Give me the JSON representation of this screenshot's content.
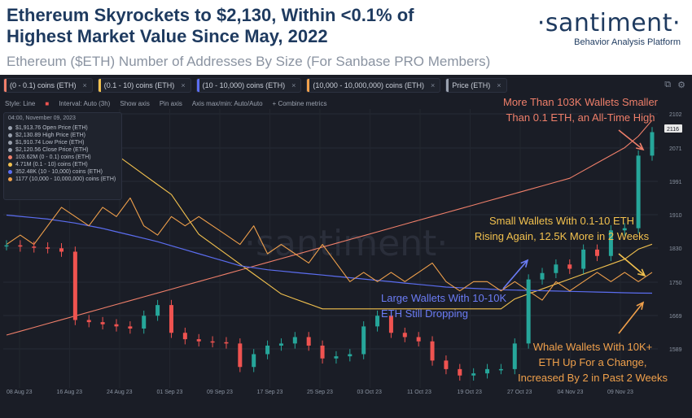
{
  "header": {
    "title_line1": "Ethereum Skyrockets to $2,130, Within <0.1% of",
    "title_line2": "Highest Market Value Since May, 2022",
    "subtitle": "Ethereum ($ETH) Number of Addresses By Size (For Sanbase PRO Members)",
    "brand_name": "·santiment·",
    "brand_tagline": "Behavior Analysis Platform"
  },
  "legend": [
    {
      "label": "(0 - 0.1) coins (ETH)",
      "color": "#ef7f6a"
    },
    {
      "label": "(0.1 - 10) coins (ETH)",
      "color": "#f2c14e"
    },
    {
      "label": "(10 - 10,000) coins (ETH)",
      "color": "#5b6df0"
    },
    {
      "label": "(10,000 - 10,000,000) coins (ETH)",
      "color": "#f0a04b"
    },
    {
      "label": "Price (ETH)",
      "color": "#9aa1ae"
    }
  ],
  "toolbar": {
    "style": "Style: Line",
    "interval": "Interval: Auto (3h)",
    "show_axis": "Show axis",
    "pin_axis": "Pin axis",
    "axis_minmax": "Axis max/min: Auto/Auto",
    "combine": "+ Combine metrics"
  },
  "infobox": {
    "date": "04:00, November 09, 2023",
    "rows": [
      {
        "text": "$1,913.76 Open Price (ETH)",
        "color": "#9aa1ae"
      },
      {
        "text": "$2,130.89 High Price (ETH)",
        "color": "#9aa1ae"
      },
      {
        "text": "$1,910.74 Low Price (ETH)",
        "color": "#9aa1ae"
      },
      {
        "text": "$2,120.56 Close Price (ETH)",
        "color": "#9aa1ae"
      },
      {
        "text": "103.62M (0 - 0.1) coins (ETH)",
        "color": "#ef7f6a"
      },
      {
        "text": "4.71M (0.1 - 10) coins (ETH)",
        "color": "#f2c14e"
      },
      {
        "text": "352.48K (10 - 10,000) coins (ETH)",
        "color": "#5b6df0"
      },
      {
        "text": "1177 (10,000 - 10,000,000) coins (ETH)",
        "color": "#f0a04b"
      }
    ]
  },
  "annotations": {
    "top_line1": "More Than 103K Wallets Smaller",
    "top_line2": "Than 0.1 ETH, an All-Time High",
    "small_line1": "Small Wallets With 0.1-10 ETH",
    "small_line2": "Rising Again, 12.5K More in 2 Weeks",
    "large_line1": "Large Wallets With 10-10K",
    "large_line2": "ETH Still Dropping",
    "whale_line1": "Whale Wallets With 10K+",
    "whale_line2": "ETH Up For a Change,",
    "whale_line3": "Increased By 2 in Past 2 Weeks"
  },
  "colors": {
    "background": "#1a1d26",
    "up_candle": "#26a69a",
    "down_candle": "#ef5350",
    "tiny_wallets": "#ef7f6a",
    "small_wallets": "#f2c14e",
    "large_wallets": "#5b6df0",
    "whale_wallets": "#f0a04b"
  },
  "chart_data": {
    "type": "line",
    "x_ticks": [
      "08 Aug 23",
      "16 Aug 23",
      "24 Aug 23",
      "01 Sep 23",
      "09 Sep 23",
      "17 Sep 23",
      "25 Sep 23",
      "03 Oct 23",
      "11 Oct 23",
      "19 Oct 23",
      "27 Oct 23",
      "04 Nov 23",
      "09 Nov 23"
    ],
    "y_ticks_price": [
      "2102",
      "2071",
      "1991",
      "1910",
      "1830",
      "1750",
      "1669",
      "1589"
    ],
    "price_label": "2116",
    "price_close_x": [
      "08 Aug",
      "10 Aug",
      "12 Aug",
      "14 Aug",
      "16 Aug",
      "18 Aug",
      "20 Aug",
      "22 Aug",
      "24 Aug",
      "26 Aug",
      "28 Aug",
      "30 Aug",
      "01 Sep",
      "03 Sep",
      "05 Sep",
      "07 Sep",
      "09 Sep",
      "11 Sep",
      "13 Sep",
      "15 Sep",
      "17 Sep",
      "19 Sep",
      "21 Sep",
      "23 Sep",
      "25 Sep",
      "27 Sep",
      "29 Sep",
      "01 Oct",
      "03 Oct",
      "05 Oct",
      "07 Oct",
      "09 Oct",
      "11 Oct",
      "13 Oct",
      "15 Oct",
      "17 Oct",
      "19 Oct",
      "21 Oct",
      "23 Oct",
      "25 Oct",
      "27 Oct",
      "29 Oct",
      "31 Oct",
      "02 Nov",
      "04 Nov",
      "06 Nov",
      "08 Nov",
      "09 Nov"
    ],
    "series": [
      {
        "name": "Price (ETH)",
        "values": [
          1855,
          1852,
          1850,
          1848,
          1840,
          1680,
          1675,
          1670,
          1665,
          1660,
          1690,
          1715,
          1650,
          1635,
          1630,
          1628,
          1625,
          1570,
          1600,
          1620,
          1625,
          1640,
          1620,
          1590,
          1595,
          1600,
          1665,
          1690,
          1650,
          1640,
          1630,
          1585,
          1565,
          1550,
          1555,
          1565,
          1565,
          1625,
          1775,
          1790,
          1810,
          1800,
          1845,
          1830,
          1890,
          1895,
          2065,
          2120
        ]
      },
      {
        "name": "(0 - 0.1) coins (ETH)",
        "values": [
          98.0,
          98.1,
          98.2,
          98.3,
          98.4,
          98.5,
          98.6,
          98.7,
          98.8,
          98.9,
          99.0,
          99.1,
          99.2,
          99.3,
          99.4,
          99.5,
          99.6,
          99.7,
          99.8,
          99.9,
          100.0,
          100.1,
          100.2,
          100.3,
          100.4,
          100.5,
          100.6,
          100.7,
          100.8,
          100.9,
          101.0,
          101.1,
          101.2,
          101.3,
          101.4,
          101.5,
          101.6,
          101.7,
          101.8,
          101.9,
          102.0,
          102.1,
          102.3,
          102.5,
          102.7,
          102.9,
          103.2,
          103.62
        ]
      },
      {
        "name": "(0.1 - 10) coins (ETH)",
        "values": [
          4.72,
          4.721,
          4.722,
          4.724,
          4.726,
          4.728,
          4.73,
          4.729,
          4.728,
          4.726,
          4.724,
          4.722,
          4.72,
          4.716,
          4.712,
          4.71,
          4.708,
          4.706,
          4.704,
          4.702,
          4.7,
          4.699,
          4.698,
          4.697,
          4.697,
          4.697,
          4.697,
          4.697,
          4.697,
          4.697,
          4.697,
          4.697,
          4.697,
          4.697,
          4.697,
          4.697,
          4.697,
          4.699,
          4.7,
          4.701,
          4.702,
          4.703,
          4.704,
          4.705,
          4.706,
          4.707,
          4.709,
          4.71
        ]
      },
      {
        "name": "(10 - 10,000) coins (ETH)",
        "values": [
          364.2,
          364.0,
          363.8,
          363.6,
          363.3,
          363.0,
          362.6,
          362.2,
          361.7,
          361.2,
          360.7,
          360.2,
          359.6,
          359.0,
          358.4,
          357.8,
          357.2,
          356.6,
          356.3,
          356.0,
          355.8,
          355.6,
          355.4,
          355.2,
          355.0,
          354.8,
          354.6,
          354.4,
          354.2,
          354.0,
          353.8,
          353.6,
          353.4,
          353.3,
          353.2,
          353.1,
          353.0,
          352.95,
          352.9,
          352.85,
          352.8,
          352.75,
          352.7,
          352.65,
          352.6,
          352.55,
          352.5,
          352.48
        ]
      },
      {
        "name": "(10,000 - 10,000,000) coins (ETH)",
        "values": [
          1180,
          1181,
          1180,
          1182,
          1184,
          1183,
          1182,
          1184,
          1183,
          1185,
          1182,
          1181,
          1183,
          1182,
          1183,
          1182,
          1181,
          1180,
          1182,
          1179,
          1180,
          1179,
          1178,
          1180,
          1178,
          1176,
          1177,
          1176,
          1177,
          1176,
          1177,
          1178,
          1176,
          1175,
          1176,
          1176,
          1175,
          1176,
          1175,
          1174,
          1176,
          1175,
          1176,
          1177,
          1176,
          1177,
          1176,
          1177
        ]
      }
    ]
  }
}
